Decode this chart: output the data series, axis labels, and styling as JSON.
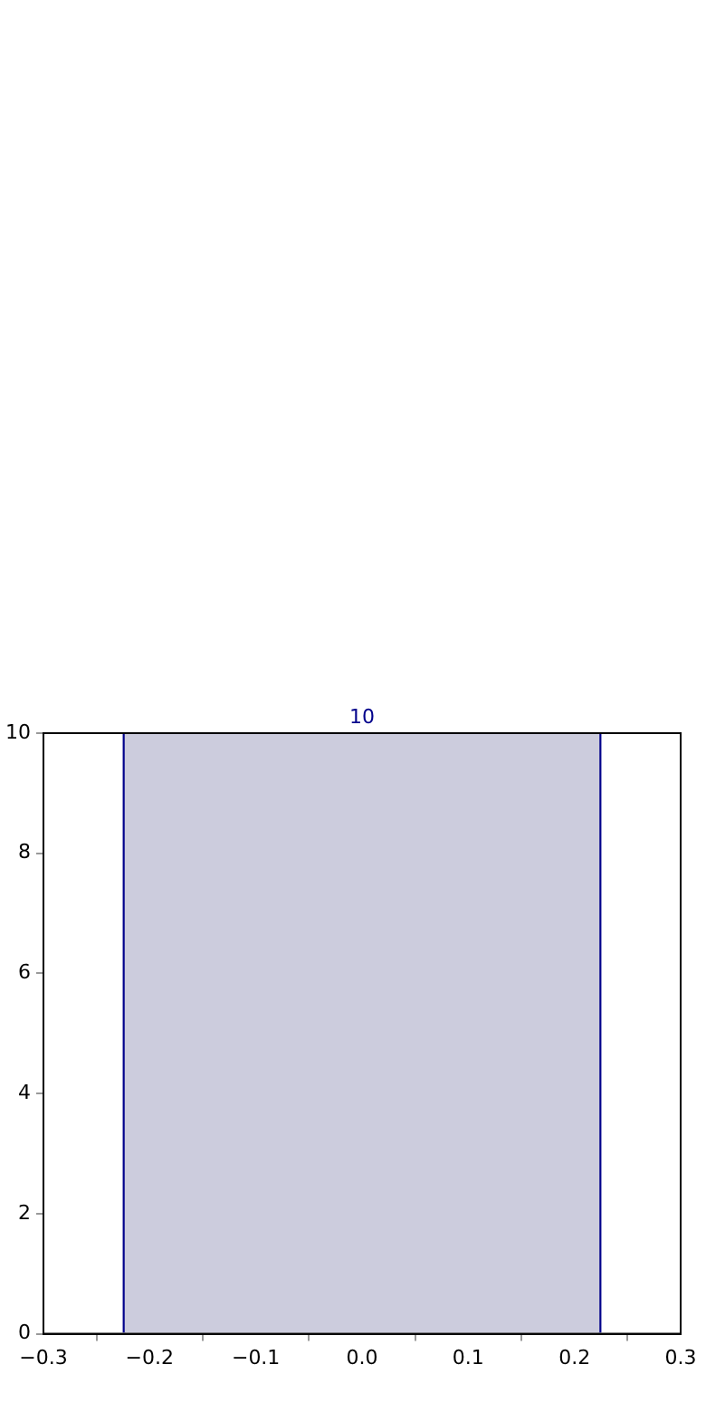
{
  "chart_data": {
    "type": "histogram",
    "bins": [
      -0.225,
      0.225
    ],
    "values": [
      10
    ],
    "color": "#ccccdd",
    "data_labels": true,
    "xlim": [
      -0.3,
      0.3
    ],
    "xticks": [
      {
        "value": -0.3,
        "label": "−0.3"
      },
      {
        "value": -0.2,
        "label": "−0.2"
      },
      {
        "value": -0.1,
        "label": "−0.1"
      },
      {
        "value": 0,
        "label": "0.0"
      },
      {
        "value": 0.1,
        "label": "0.1"
      },
      {
        "value": 0.2,
        "label": "0.2"
      },
      {
        "value": 0.3,
        "label": "0.3"
      }
    ],
    "ylim": [
      0,
      10
    ],
    "yticks": [
      0,
      2,
      4,
      6,
      8,
      10
    ],
    "grid": false,
    "legend": false
  }
}
